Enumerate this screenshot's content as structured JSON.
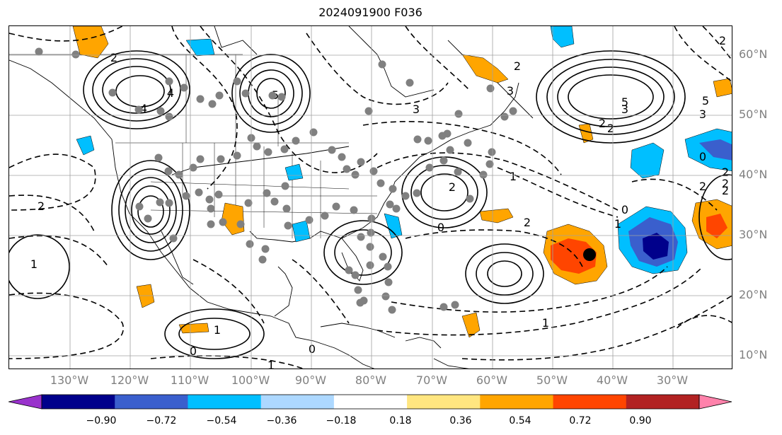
{
  "title": "2024091900 F036",
  "lat_labels": [
    "60°N",
    "50°N",
    "40°N",
    "30°N",
    "20°N",
    "10°N"
  ],
  "lon_labels": [
    "130°W",
    "120°W",
    "110°W",
    "100°W",
    "90°W",
    "80°W",
    "70°W",
    "60°W",
    "50°W",
    "40°W",
    "30°W"
  ],
  "colorbar": {
    "ticks": [
      "−0.90",
      "−0.72",
      "−0.54",
      "−0.36",
      "−0.18",
      "0.18",
      "0.36",
      "0.54",
      "0.72",
      "0.90"
    ],
    "colors": [
      "#9932cc",
      "#00008b",
      "#3a5fcd",
      "#00bfff",
      "#add8ff",
      "#ffffff",
      "#ffe680",
      "#ffa500",
      "#ff4500",
      "#b22222",
      "#ff82ab"
    ]
  },
  "contour_labels": [
    "2",
    "4",
    "4",
    "5",
    "3",
    "2",
    "3",
    "1",
    "2",
    "5",
    "3",
    "2",
    "5",
    "2",
    "0",
    "2",
    "2",
    "2",
    "2",
    "1",
    "0",
    "3",
    "0",
    "2",
    "0",
    "1",
    "1",
    "1",
    "0",
    "1",
    "2",
    "2"
  ],
  "map_features": {
    "fill_colors": {
      "orange": "#ffa500",
      "red": "#ff4500",
      "blue": "#00bfff",
      "navy": "#00008b",
      "mid_blue": "#3a5fcd",
      "yellow": "#ffe680"
    },
    "station_marker_color": "#808080",
    "storm_marker_color": "#000000"
  }
}
